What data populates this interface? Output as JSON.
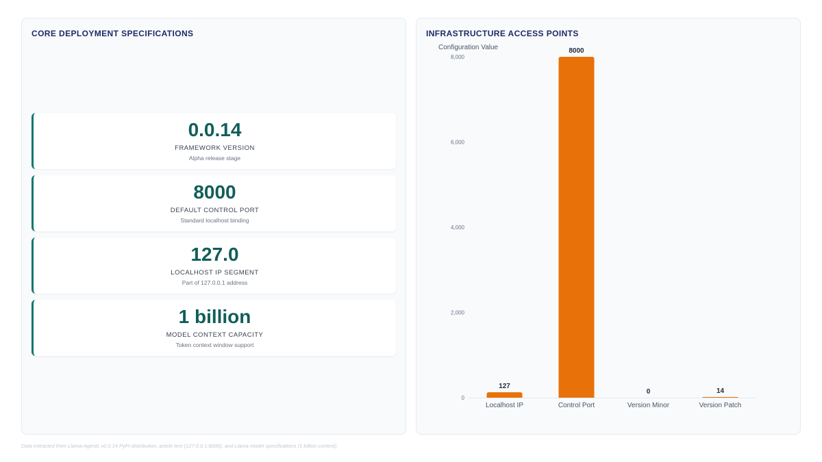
{
  "left_panel": {
    "title": "CORE DEPLOYMENT SPECIFICATIONS",
    "metrics": [
      {
        "value": "0.0.14",
        "label": "FRAMEWORK VERSION",
        "sub": "Alpha release stage"
      },
      {
        "value": "8000",
        "label": "DEFAULT CONTROL PORT",
        "sub": "Standard localhost binding"
      },
      {
        "value": "127.0",
        "label": "LOCALHOST IP SEGMENT",
        "sub": "Part of 127.0.0.1 address"
      },
      {
        "value": "1 billion",
        "label": "MODEL CONTEXT CAPACITY",
        "sub": "Token context window support"
      }
    ]
  },
  "right_panel": {
    "title": "INFRASTRUCTURE ACCESS POINTS"
  },
  "chart_data": {
    "type": "bar",
    "title": "INFRASTRUCTURE ACCESS POINTS",
    "ylabel": "Configuration Value",
    "xlabel": "",
    "categories": [
      "Localhost IP",
      "Control Port",
      "Version Minor",
      "Version Patch"
    ],
    "values": [
      127,
      8000,
      0,
      14
    ],
    "data_labels": [
      "127",
      "8000",
      "0",
      "14"
    ],
    "ylim": [
      0,
      8000
    ],
    "yticks": [
      0,
      2000,
      4000,
      6000,
      8000
    ],
    "ytick_labels": [
      "0",
      "2,000",
      "4,000",
      "6,000",
      "8,000"
    ],
    "grid": false,
    "bar_color": "#e8710a"
  },
  "footnote": "Data extracted from Llama-Agents v0.0.14 PyPI distribution, article text (127.0.0.1:8000), and Llama model specifications (1 billion context)."
}
